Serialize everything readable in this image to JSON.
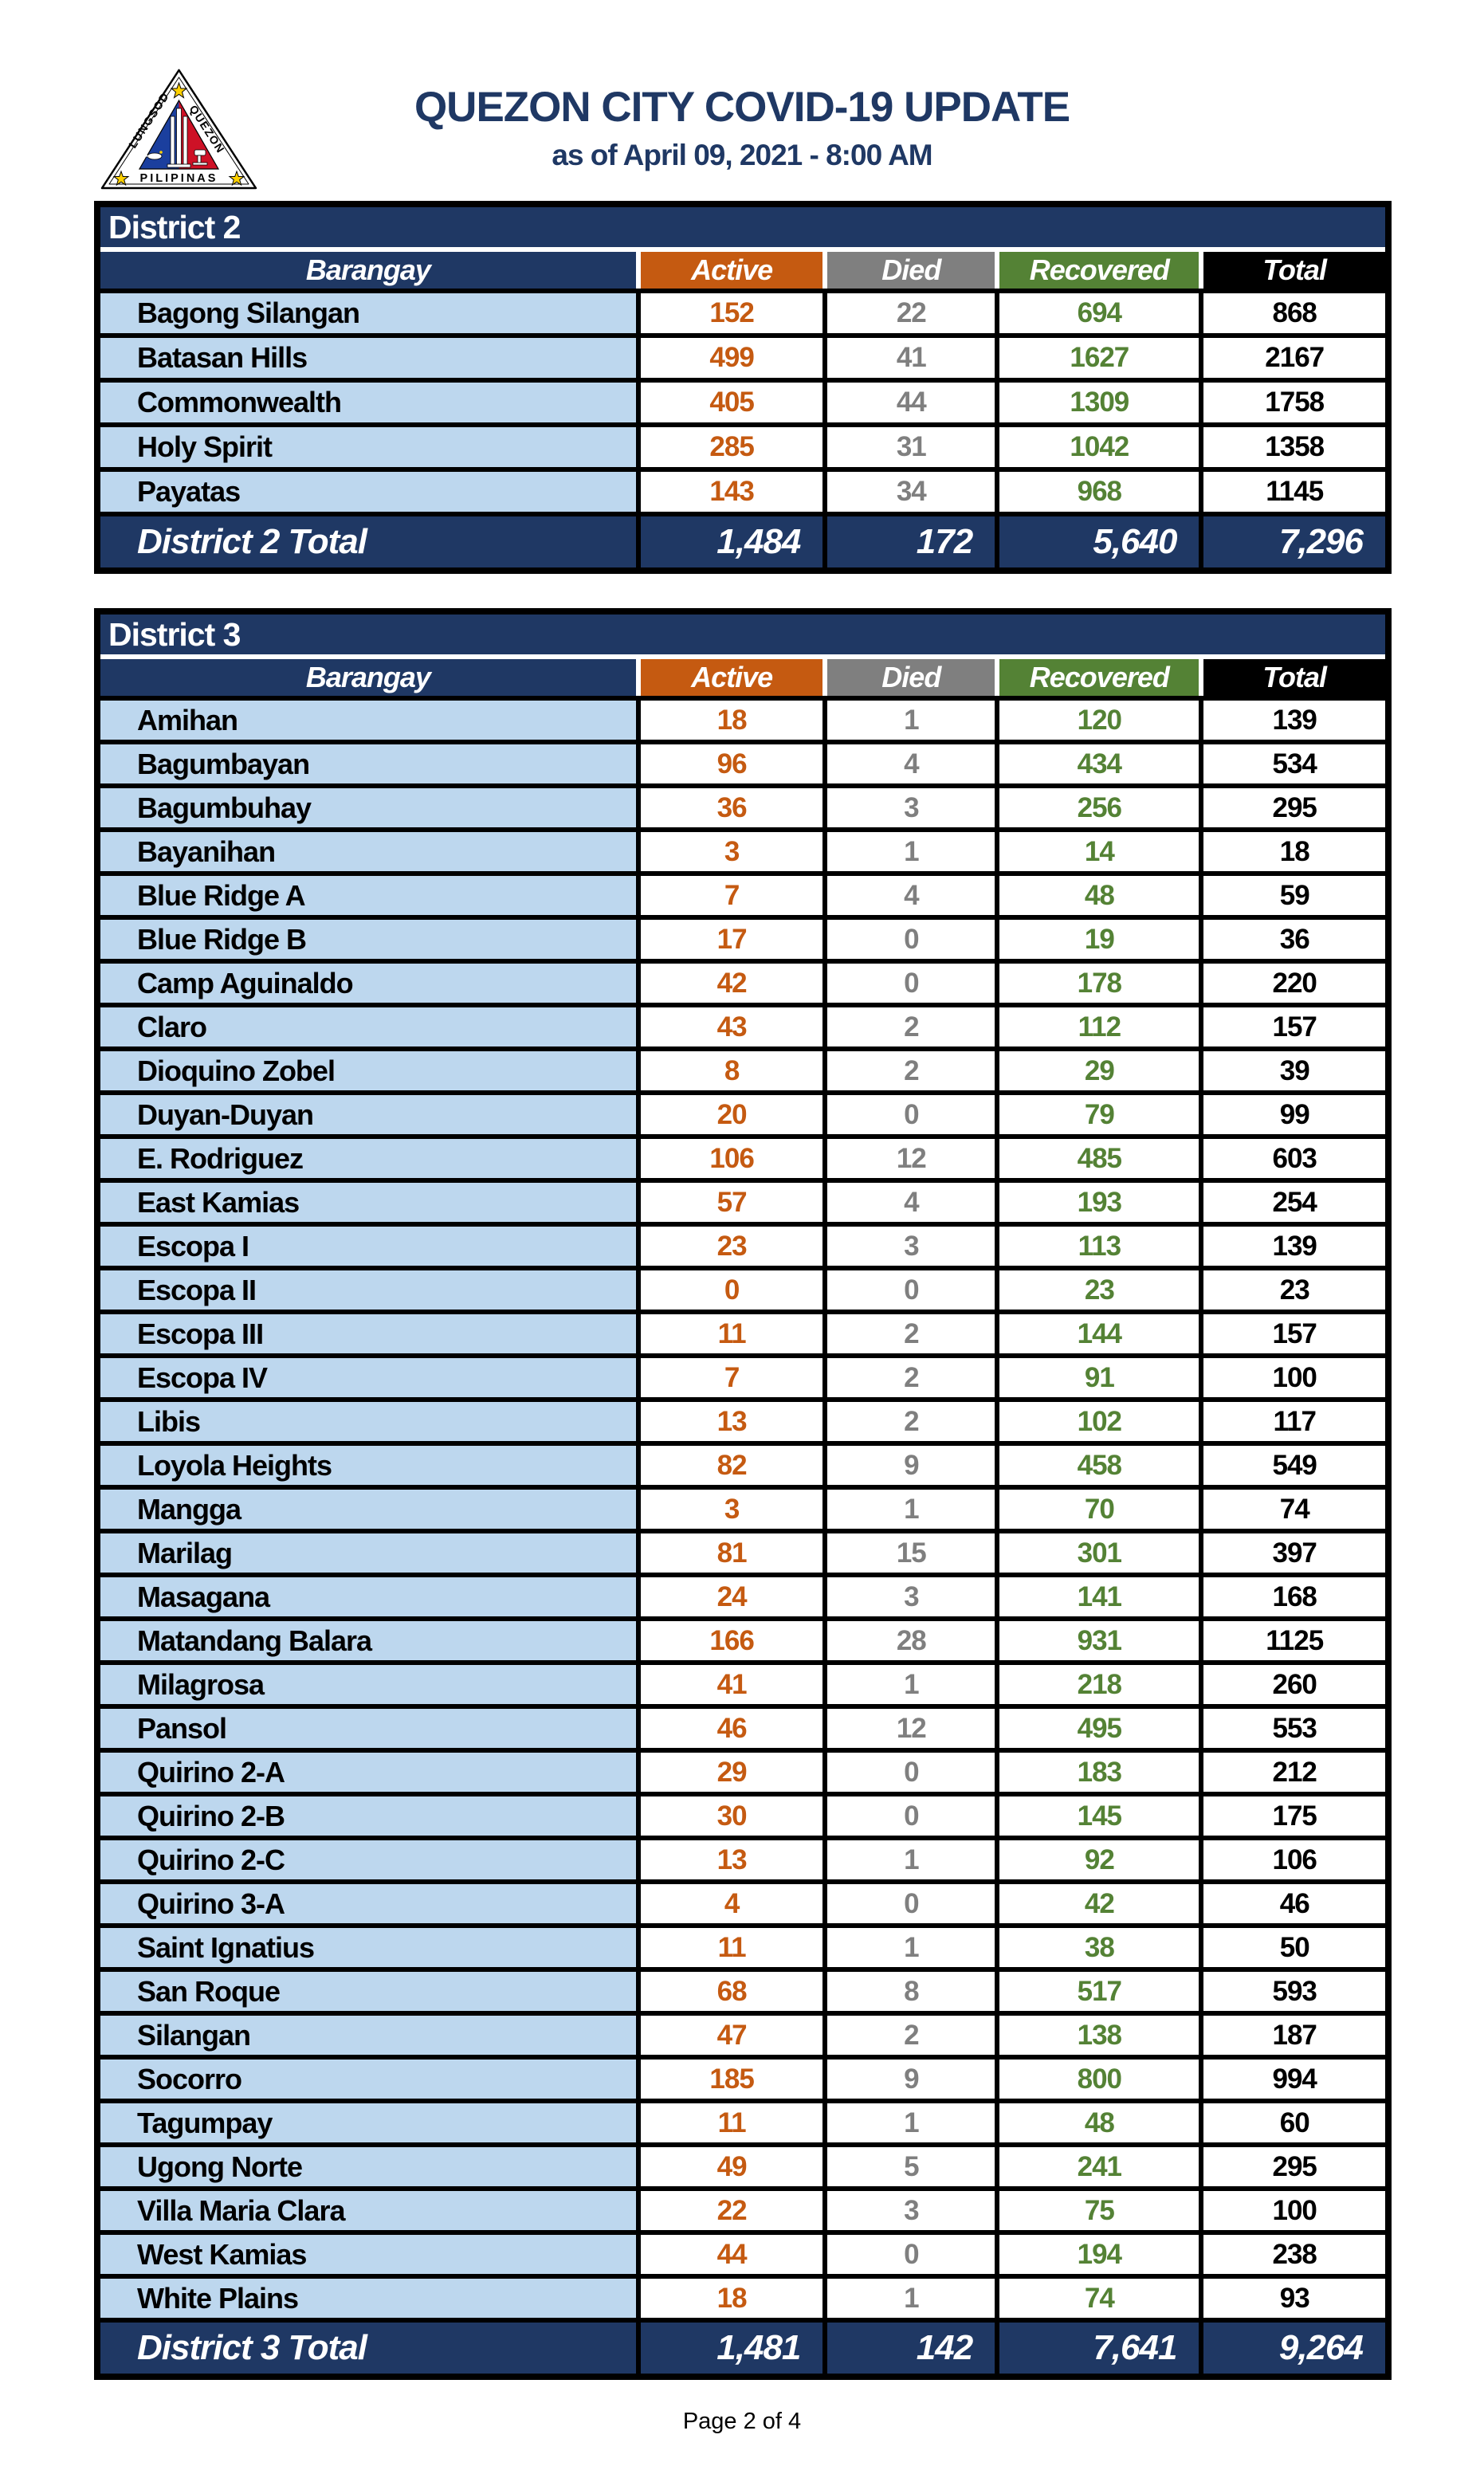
{
  "page": {
    "title": "QUEZON CITY COVID-19 UPDATE",
    "subtitle": "as of April 09, 2021 - 8:00 AM",
    "footer": "Page 2 of 4"
  },
  "logo": {
    "left_text": "LUNGSOD",
    "right_text": "QUEZON",
    "bottom_text": "PILIPINAS"
  },
  "colors": {
    "navy": "#1F3864",
    "orange": "#C55A11",
    "gray": "#7F7F7F",
    "green": "#548235",
    "lightblue": "#BDD7EE"
  },
  "columns": [
    "Barangay",
    "Active",
    "Died",
    "Recovered",
    "Total"
  ],
  "tables": [
    {
      "district": "District 2",
      "total_label": "District 2 Total",
      "rows": [
        [
          "Bagong Silangan",
          152,
          22,
          694,
          868
        ],
        [
          "Batasan Hills",
          499,
          41,
          1627,
          2167
        ],
        [
          "Commonwealth",
          405,
          44,
          1309,
          1758
        ],
        [
          "Holy Spirit",
          285,
          31,
          1042,
          1358
        ],
        [
          "Payatas",
          143,
          34,
          968,
          1145
        ]
      ],
      "totals": [
        "1,484",
        "172",
        "5,640",
        "7,296"
      ]
    },
    {
      "district": "District 3",
      "total_label": "District 3 Total",
      "rows": [
        [
          "Amihan",
          18,
          1,
          120,
          139
        ],
        [
          "Bagumbayan",
          96,
          4,
          434,
          534
        ],
        [
          "Bagumbuhay",
          36,
          3,
          256,
          295
        ],
        [
          "Bayanihan",
          3,
          1,
          14,
          18
        ],
        [
          "Blue Ridge A",
          7,
          4,
          48,
          59
        ],
        [
          "Blue Ridge B",
          17,
          0,
          19,
          36
        ],
        [
          "Camp Aguinaldo",
          42,
          0,
          178,
          220
        ],
        [
          "Claro",
          43,
          2,
          112,
          157
        ],
        [
          "Dioquino Zobel",
          8,
          2,
          29,
          39
        ],
        [
          "Duyan-Duyan",
          20,
          0,
          79,
          99
        ],
        [
          "E. Rodriguez",
          106,
          12,
          485,
          603
        ],
        [
          "East Kamias",
          57,
          4,
          193,
          254
        ],
        [
          "Escopa I",
          23,
          3,
          113,
          139
        ],
        [
          "Escopa II",
          0,
          0,
          23,
          23
        ],
        [
          "Escopa III",
          11,
          2,
          144,
          157
        ],
        [
          "Escopa IV",
          7,
          2,
          91,
          100
        ],
        [
          "Libis",
          13,
          2,
          102,
          117
        ],
        [
          "Loyola Heights",
          82,
          9,
          458,
          549
        ],
        [
          "Mangga",
          3,
          1,
          70,
          74
        ],
        [
          "Marilag",
          81,
          15,
          301,
          397
        ],
        [
          "Masagana",
          24,
          3,
          141,
          168
        ],
        [
          "Matandang Balara",
          166,
          28,
          931,
          1125
        ],
        [
          "Milagrosa",
          41,
          1,
          218,
          260
        ],
        [
          "Pansol",
          46,
          12,
          495,
          553
        ],
        [
          "Quirino 2-A",
          29,
          0,
          183,
          212
        ],
        [
          "Quirino 2-B",
          30,
          0,
          145,
          175
        ],
        [
          "Quirino 2-C",
          13,
          1,
          92,
          106
        ],
        [
          "Quirino 3-A",
          4,
          0,
          42,
          46
        ],
        [
          "Saint Ignatius",
          11,
          1,
          38,
          50
        ],
        [
          "San Roque",
          68,
          8,
          517,
          593
        ],
        [
          "Silangan",
          47,
          2,
          138,
          187
        ],
        [
          "Socorro",
          185,
          9,
          800,
          994
        ],
        [
          "Tagumpay",
          11,
          1,
          48,
          60
        ],
        [
          "Ugong Norte",
          49,
          5,
          241,
          295
        ],
        [
          "Villa Maria Clara",
          22,
          3,
          75,
          100
        ],
        [
          "West Kamias",
          44,
          0,
          194,
          238
        ],
        [
          "White Plains",
          18,
          1,
          74,
          93
        ]
      ],
      "totals": [
        "1,481",
        "142",
        "7,641",
        "9,264"
      ]
    }
  ]
}
